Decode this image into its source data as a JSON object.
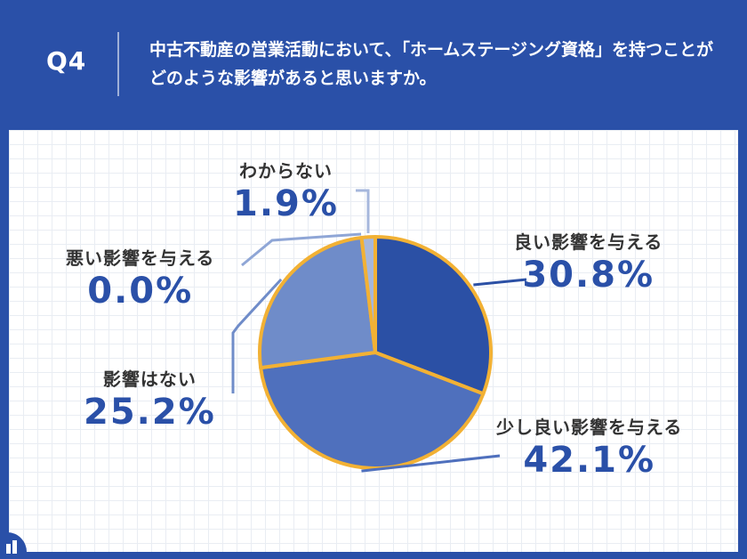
{
  "header": {
    "q_label": "Q4",
    "question": "中古不動産の営業活動において、「ホームステージング資格」を持つことがどのような影響があると思いますか。"
  },
  "colors": {
    "header_bg": "#2a50a8",
    "slice_border": "#f2b134",
    "value_text": "#2a50a8"
  },
  "chart_data": {
    "type": "pie",
    "start_angle_deg": 0,
    "direction": "clockwise",
    "slices": [
      {
        "label": "良い影響を与える",
        "value": 30.8,
        "display": "30.8%",
        "color": "#2b50a5",
        "leader_color": "#2b50a5"
      },
      {
        "label": "少し良い影響を与える",
        "value": 42.1,
        "display": "42.1%",
        "color": "#4f70bd",
        "leader_color": "#4f70bd"
      },
      {
        "label": "影響はない",
        "value": 25.2,
        "display": "25.2%",
        "color": "#6f8cc9",
        "leader_color": "#6f8cc9"
      },
      {
        "label": "悪い影響を与える",
        "value": 0.0,
        "display": "0.0%",
        "color": "#8fa6d6",
        "leader_color": "#8fa6d6"
      },
      {
        "label": "わからない",
        "value": 1.9,
        "display": "1.9%",
        "color": "#a6b7dc",
        "leader_color": "#a6b7dc"
      }
    ]
  }
}
